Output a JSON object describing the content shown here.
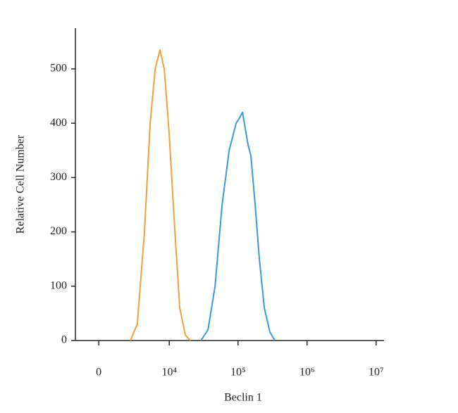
{
  "chart_data": {
    "type": "line",
    "xlabel": "Beclin 1",
    "ylabel": "Relative Cell Number",
    "xscale": "biexponential",
    "xlim": [
      -1650,
      13000000
    ],
    "ylim": [
      0,
      575
    ],
    "xticks": [
      0,
      {
        "value": 10000,
        "label": "10⁴"
      },
      {
        "value": 100000,
        "label": "10⁵"
      },
      {
        "value": 1000000,
        "label": "10⁶"
      },
      {
        "value": 10000000,
        "label": "10⁷"
      }
    ],
    "yticks": [
      0,
      100,
      200,
      300,
      400,
      500
    ],
    "series": [
      {
        "color": "#f0a040",
        "x": [
          2420,
          3200,
          4200,
          5160,
          6150,
          7290,
          8430,
          9960,
          12080,
          14250,
          17220,
          20350
        ],
        "values": [
          0,
          30,
          200,
          400,
          500,
          535,
          500,
          380,
          200,
          60,
          10,
          0
        ]
      },
      {
        "color": "#3b9ad6",
        "x": [
          29000,
          36700,
          46400,
          58700,
          74200,
          93800,
          105500,
          116000,
          127100,
          139800,
          153600,
          176700,
          203500,
          240000,
          290000,
          341700
        ],
        "values": [
          0,
          20,
          100,
          250,
          350,
          400,
          410,
          420,
          390,
          360,
          340,
          250,
          150,
          60,
          15,
          0
        ]
      }
    ]
  }
}
